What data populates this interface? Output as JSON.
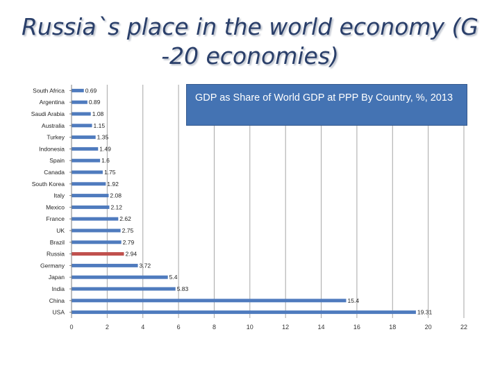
{
  "slide": {
    "title": "Russia`s place in the world economy (G -20 economies)"
  },
  "callout": {
    "text": "GDP as Share of World GDP at PPP By Country, %, 2013"
  },
  "colors": {
    "bar": "#4f7bbe",
    "highlight": "#c0504d",
    "gridline": "#a6a6a6",
    "title": "#2a3f6a",
    "callout_bg": "#4473b3"
  },
  "chart_data": {
    "type": "bar",
    "orientation": "horizontal",
    "title": "",
    "xlabel": "",
    "ylabel": "",
    "categories": [
      "South Africa",
      "Argentina",
      "Saudi Arabia",
      "Australia",
      "Turkey",
      "Indonesia",
      "Spain",
      "Canada",
      "South Korea",
      "Italy",
      "Mexico",
      "France",
      "UK",
      "Brazil",
      "Russia",
      "Germany",
      "Japan",
      "India",
      "China",
      "USA"
    ],
    "values": [
      0.69,
      0.89,
      1.08,
      1.15,
      1.35,
      1.49,
      1.6,
      1.75,
      1.92,
      2.08,
      2.12,
      2.62,
      2.75,
      2.79,
      2.94,
      3.72,
      5.4,
      5.83,
      15.4,
      19.31
    ],
    "value_labels": [
      "0.69",
      "0.89",
      "1.08",
      "1.15",
      "1.35",
      "1.49",
      "1.6",
      "1.75",
      "1.92",
      "2.08",
      "2.12",
      "2.62",
      "2.75",
      "2.79",
      "2.94",
      "3.72",
      "5.4",
      "5.83",
      "15.4",
      "19.31"
    ],
    "highlight_category": "Russia",
    "xlim": [
      0,
      22
    ],
    "x_ticks": [
      0,
      2,
      4,
      6,
      8,
      10,
      12,
      14,
      16,
      18,
      20,
      22
    ],
    "grid": true,
    "legend": "none"
  }
}
